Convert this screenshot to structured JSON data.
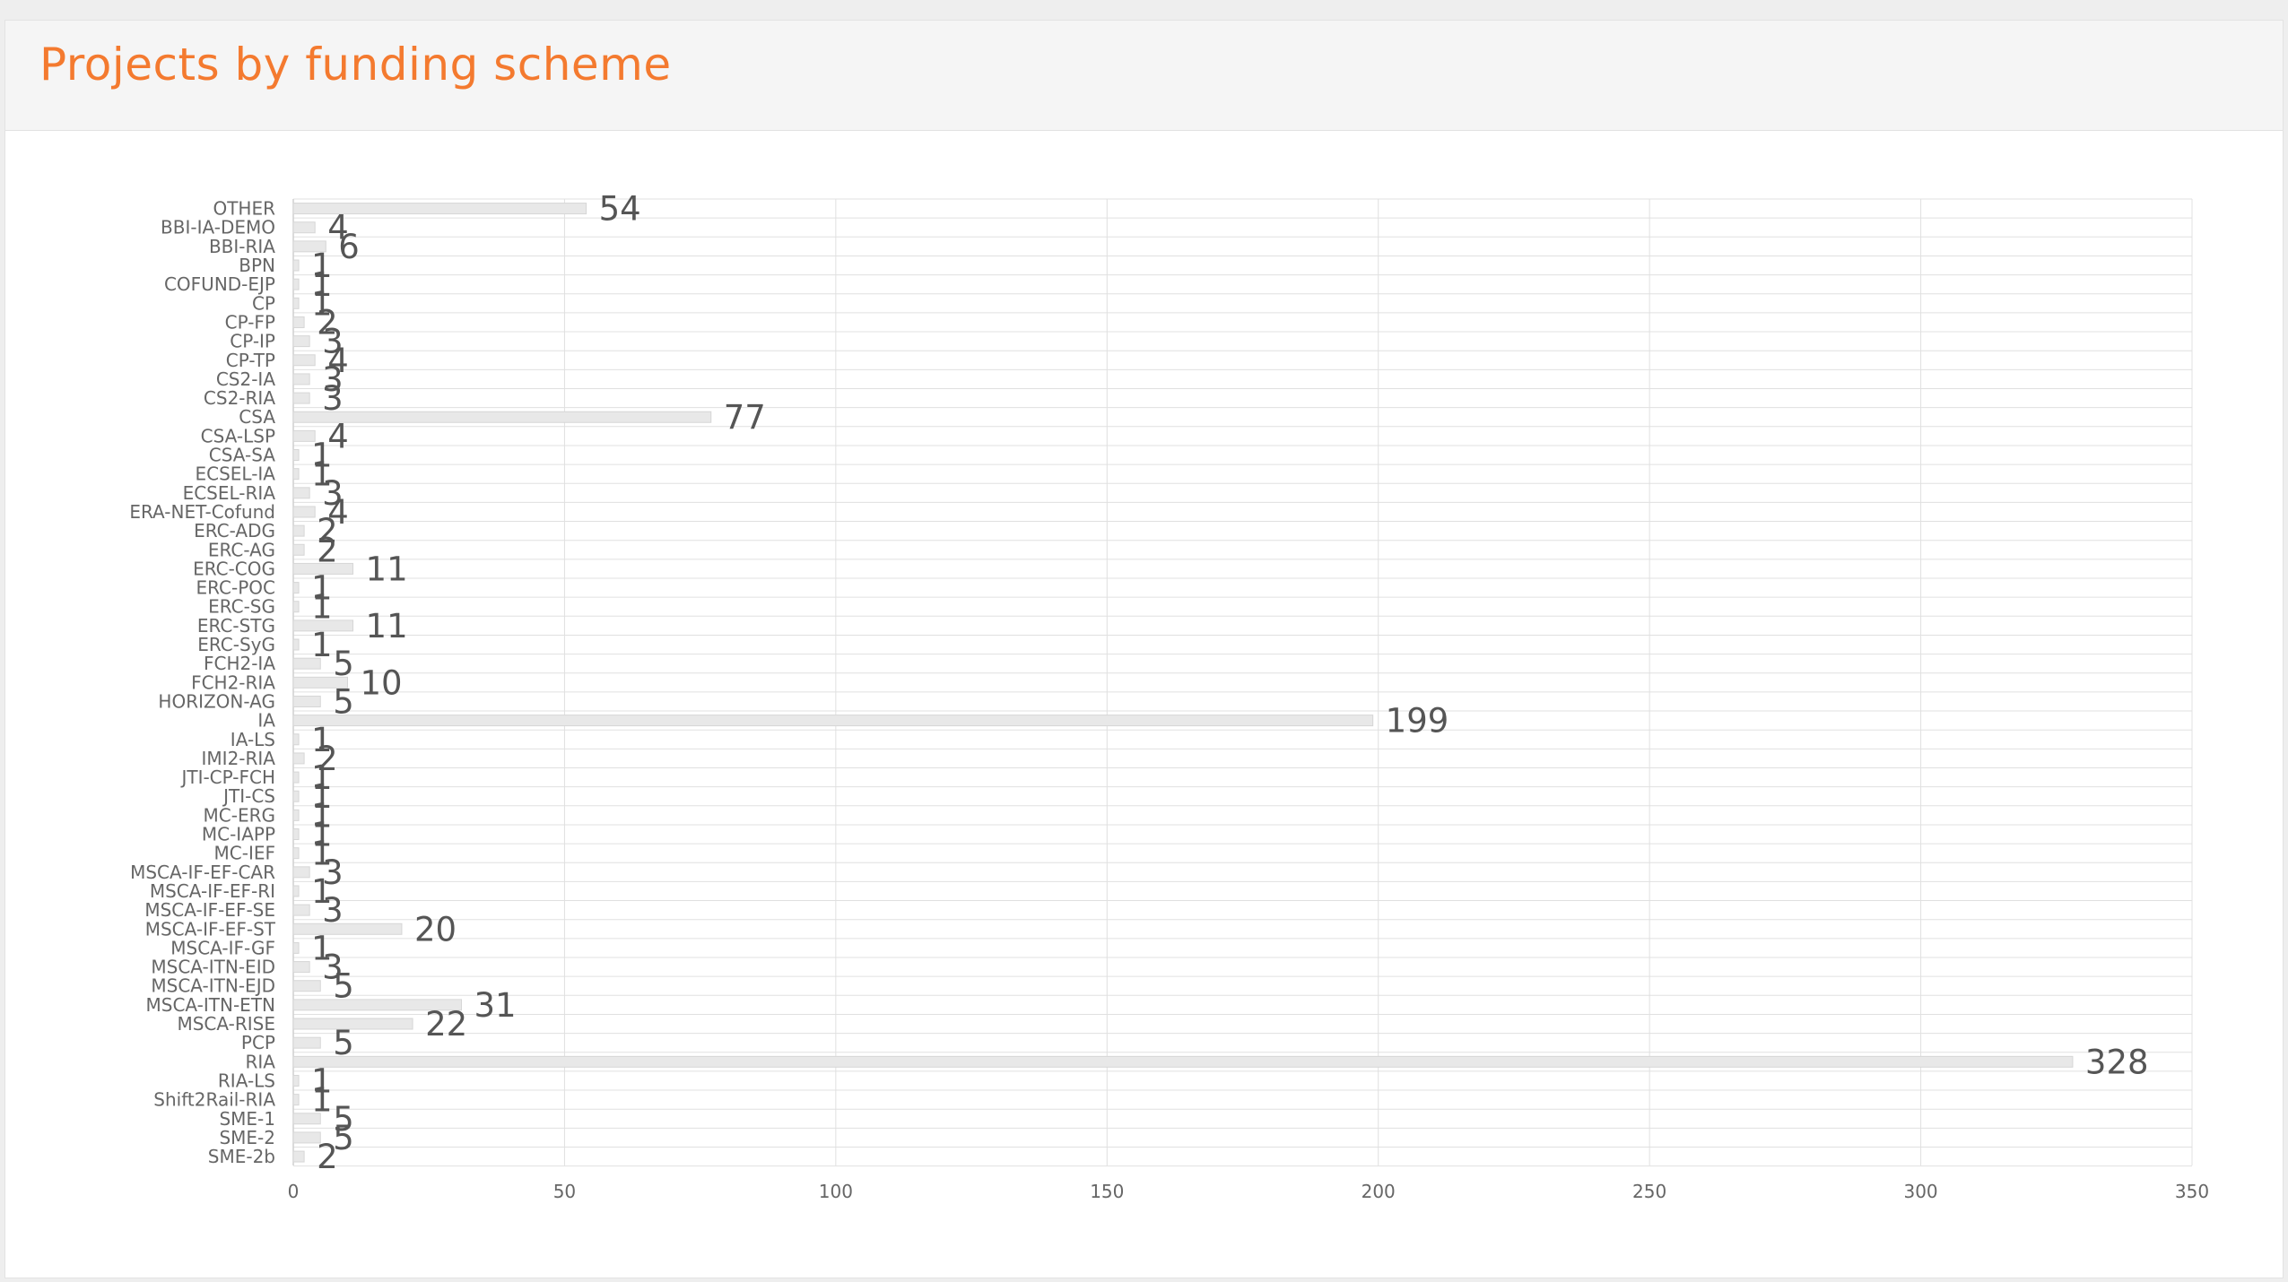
{
  "panel": {
    "title": "Projects by funding scheme"
  },
  "colors": {
    "title": "#f47a2f",
    "bar_fill": "#e8e8e8",
    "bar_stroke": "#d6d6d6",
    "grid": "#e0e0e0",
    "text": "#666666",
    "value_text": "#555555"
  },
  "chart_data": {
    "type": "bar",
    "orientation": "horizontal",
    "title": "",
    "xlabel": "",
    "ylabel": "",
    "xlim": [
      0,
      350
    ],
    "xticks": [
      0,
      50,
      100,
      150,
      200,
      250,
      300,
      350
    ],
    "grid": true,
    "legend": "none",
    "categories": [
      "OTHER",
      "BBI-IA-DEMO",
      "BBI-RIA",
      "BPN",
      "COFUND-EJP",
      "CP",
      "CP-FP",
      "CP-IP",
      "CP-TP",
      "CS2-IA",
      "CS2-RIA",
      "CSA",
      "CSA-LSP",
      "CSA-SA",
      "ECSEL-IA",
      "ECSEL-RIA",
      "ERA-NET-Cofund",
      "ERC-ADG",
      "ERC-AG",
      "ERC-COG",
      "ERC-POC",
      "ERC-SG",
      "ERC-STG",
      "ERC-SyG",
      "FCH2-IA",
      "FCH2-RIA",
      "HORIZON-AG",
      "IA",
      "IA-LS",
      "IMI2-RIA",
      "JTI-CP-FCH",
      "JTI-CS",
      "MC-ERG",
      "MC-IAPP",
      "MC-IEF",
      "MSCA-IF-EF-CAR",
      "MSCA-IF-EF-RI",
      "MSCA-IF-EF-SE",
      "MSCA-IF-EF-ST",
      "MSCA-IF-GF",
      "MSCA-ITN-EID",
      "MSCA-ITN-EJD",
      "MSCA-ITN-ETN",
      "MSCA-RISE",
      "PCP",
      "RIA",
      "RIA-LS",
      "Shift2Rail-RIA",
      "SME-1",
      "SME-2",
      "SME-2b"
    ],
    "values": [
      54,
      4,
      6,
      1,
      1,
      1,
      2,
      3,
      4,
      3,
      3,
      77,
      4,
      1,
      1,
      3,
      4,
      2,
      2,
      11,
      1,
      1,
      11,
      1,
      5,
      10,
      5,
      199,
      1,
      2,
      1,
      1,
      1,
      1,
      1,
      3,
      1,
      3,
      20,
      1,
      3,
      5,
      31,
      22,
      5,
      328,
      1,
      1,
      5,
      5,
      2
    ]
  }
}
